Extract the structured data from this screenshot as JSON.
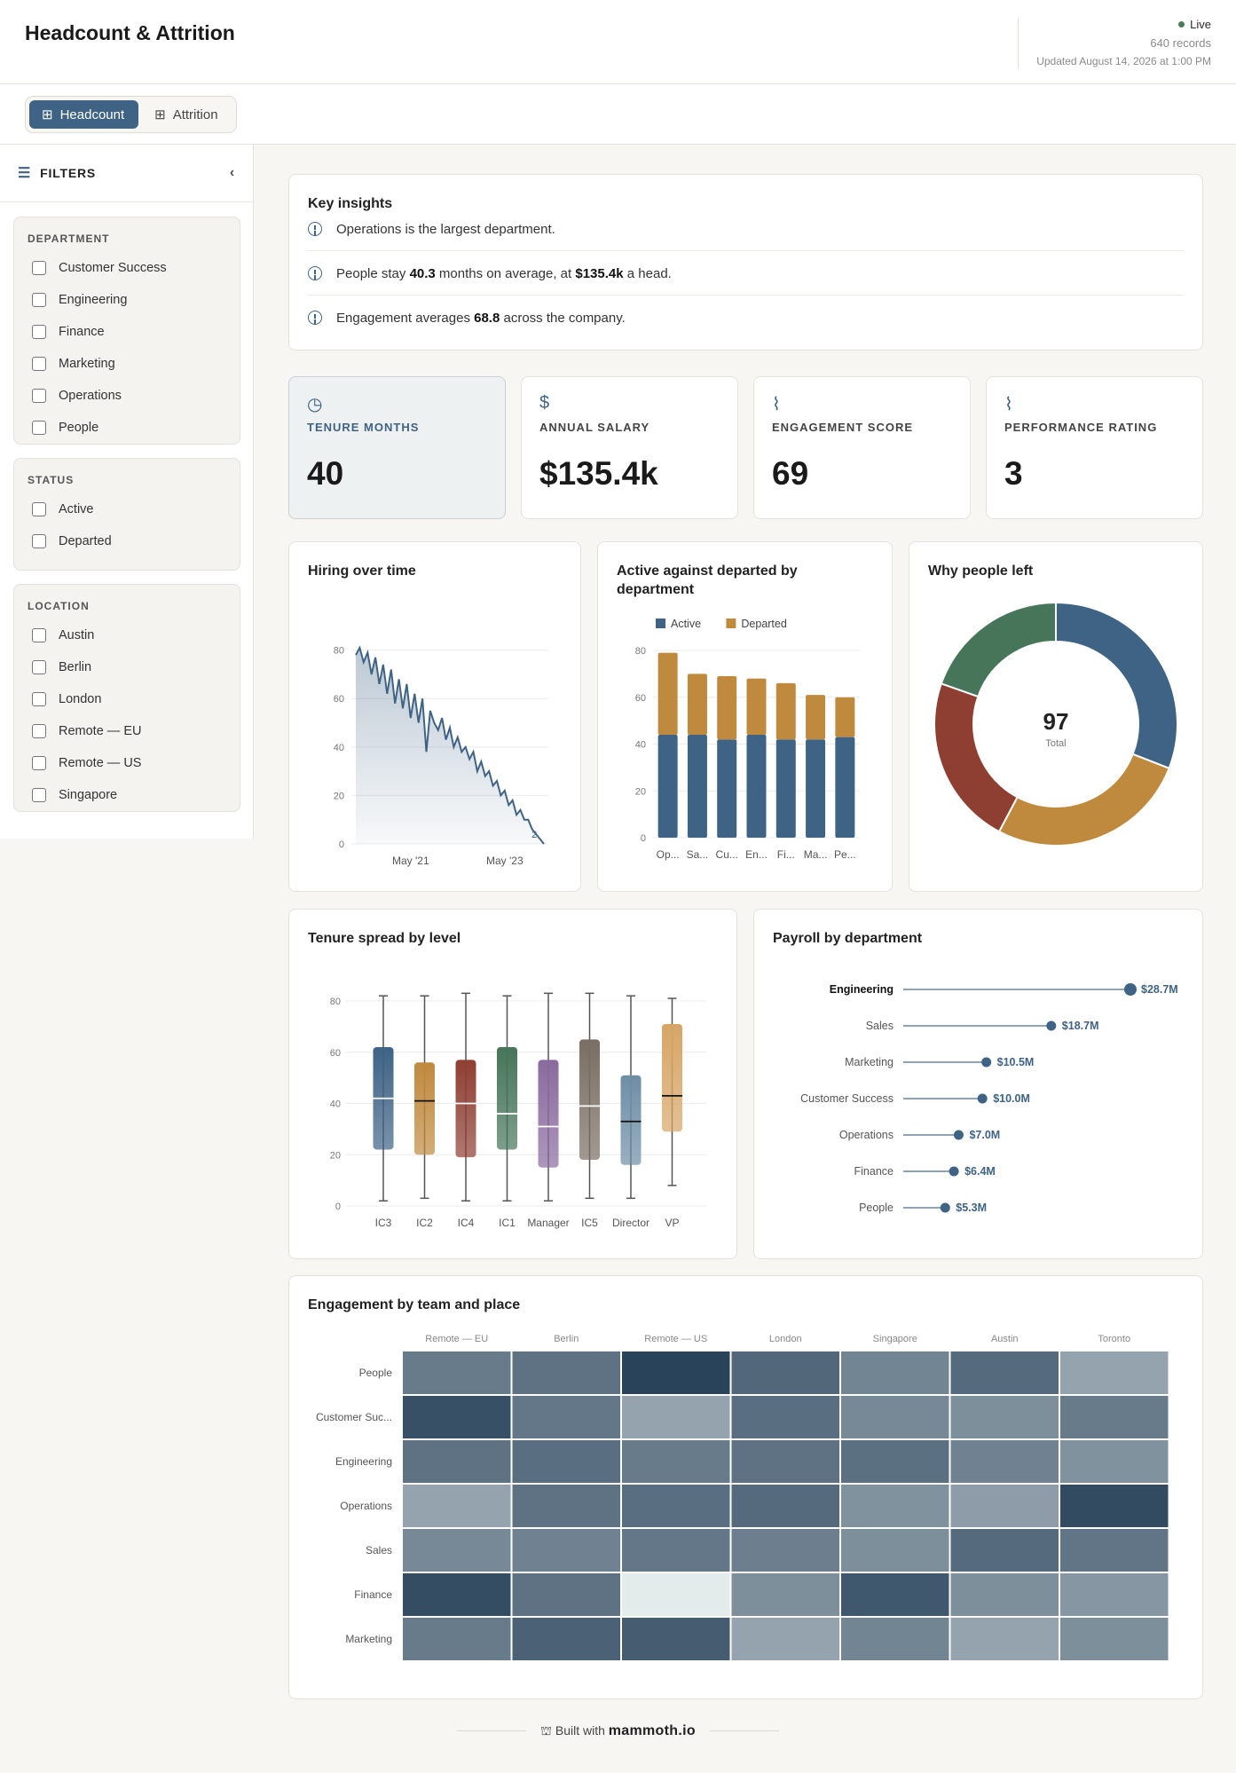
{
  "header": {
    "title": "Headcount & Attrition",
    "status": "Live",
    "records": "640 records",
    "updated": "Updated August 14, 2026 at 1:00 PM"
  },
  "tabs": [
    {
      "label": "Headcount",
      "active": true
    },
    {
      "label": "Attrition",
      "active": false
    }
  ],
  "filters": {
    "title": "FILTERS",
    "groups": [
      {
        "title": "DEPARTMENT",
        "options": [
          "Customer Success",
          "Engineering",
          "Finance",
          "Marketing",
          "Operations",
          "People"
        ]
      },
      {
        "title": "STATUS",
        "options": [
          "Active",
          "Departed"
        ]
      },
      {
        "title": "LOCATION",
        "options": [
          "Austin",
          "Berlin",
          "London",
          "Remote — EU",
          "Remote — US",
          "Singapore"
        ]
      }
    ]
  },
  "insights": {
    "title": "Key insights",
    "items": [
      {
        "parts": [
          {
            "t": "Operations is the largest department."
          }
        ]
      },
      {
        "parts": [
          {
            "t": "People stay "
          },
          {
            "t": "40.3",
            "b": true
          },
          {
            "t": " months on average, at "
          },
          {
            "t": "$135.4k",
            "b": true
          },
          {
            "t": " a head."
          }
        ]
      },
      {
        "parts": [
          {
            "t": "Engagement averages "
          },
          {
            "t": "68.8",
            "b": true
          },
          {
            "t": " across the company."
          }
        ]
      }
    ]
  },
  "kpis": [
    {
      "label": "TENURE MONTHS",
      "value": "40",
      "icon": "clock-icon",
      "glyph": "◷",
      "highlight": true
    },
    {
      "label": "ANNUAL SALARY",
      "value": "$135.4k",
      "icon": "dollar-icon",
      "glyph": "$",
      "highlight": false
    },
    {
      "label": "ENGAGEMENT SCORE",
      "value": "69",
      "icon": "activity-icon",
      "glyph": "⌇",
      "highlight": false
    },
    {
      "label": "PERFORMANCE RATING",
      "value": "3",
      "icon": "activity-icon",
      "glyph": "⌇",
      "highlight": false
    }
  ],
  "chart_data": [
    {
      "type": "area",
      "title": "Hiring over time",
      "y_ticks": [
        0,
        20,
        40,
        60,
        80
      ],
      "ylim": [
        0,
        85
      ],
      "x_tick_labels": [
        "May '21",
        "May '23"
      ],
      "x_tick_index": [
        14,
        38
      ],
      "end_label": "2",
      "values": [
        78,
        81,
        75,
        79,
        70,
        77,
        66,
        74,
        62,
        72,
        58,
        68,
        56,
        66,
        52,
        62,
        50,
        60,
        38,
        55,
        50,
        47,
        52,
        43,
        48,
        40,
        44,
        38,
        40,
        35,
        38,
        30,
        34,
        28,
        30,
        24,
        26,
        20,
        22,
        16,
        18,
        12,
        14,
        10,
        10,
        6,
        4,
        2,
        0
      ]
    },
    {
      "type": "bar",
      "stacked": true,
      "title": "Active against departed by department",
      "categories": [
        "Op...",
        "Sa...",
        "Cu...",
        "En...",
        "Fi...",
        "Ma...",
        "Pe..."
      ],
      "series": [
        {
          "name": "Active",
          "color": "#3f6385",
          "values": [
            44,
            44,
            42,
            44,
            42,
            42,
            43
          ]
        },
        {
          "name": "Departed",
          "color": "#c08a3e",
          "values": [
            35,
            26,
            27,
            24,
            24,
            19,
            17
          ]
        }
      ],
      "y_ticks": [
        0,
        20,
        40,
        60,
        80
      ],
      "ylim": [
        0,
        80
      ],
      "legend": "top"
    },
    {
      "type": "pie",
      "title": "Why people left",
      "center_value": "97",
      "center_label": "Total",
      "slices": [
        {
          "value": 30,
          "color": "#3f6385"
        },
        {
          "value": 26,
          "color": "#c08a3e"
        },
        {
          "value": 22,
          "color": "#8e3f32"
        },
        {
          "value": 19,
          "color": "#467559"
        }
      ]
    },
    {
      "type": "box",
      "title": "Tenure spread by level",
      "categories": [
        "IC3",
        "IC2",
        "IC4",
        "IC1",
        "Manager",
        "IC5",
        "Director",
        "VP"
      ],
      "y_ticks": [
        0,
        20,
        40,
        60,
        80
      ],
      "ylim": [
        0,
        85
      ],
      "boxes": [
        {
          "min": 2,
          "q1": 22,
          "median": 42,
          "q3": 62,
          "max": 82,
          "color": "#3f6385"
        },
        {
          "min": 3,
          "q1": 20,
          "median": 41,
          "q3": 56,
          "max": 82,
          "color": "#c08a3e"
        },
        {
          "min": 2,
          "q1": 19,
          "median": 40,
          "q3": 57,
          "max": 83,
          "color": "#8e3f32"
        },
        {
          "min": 2,
          "q1": 22,
          "median": 36,
          "q3": 62,
          "max": 82,
          "color": "#467559"
        },
        {
          "min": 2,
          "q1": 15,
          "median": 31,
          "q3": 57,
          "max": 83,
          "color": "#8a6a9e"
        },
        {
          "min": 3,
          "q1": 18,
          "median": 39,
          "q3": 65,
          "max": 83,
          "color": "#7a6e63"
        },
        {
          "min": 3,
          "q1": 16,
          "median": 33,
          "q3": 51,
          "max": 82,
          "color": "#6e8ea6"
        },
        {
          "min": 8,
          "q1": 29,
          "median": 43,
          "q3": 71,
          "max": 81,
          "color": "#d7a566"
        }
      ]
    },
    {
      "type": "lollipop",
      "title": "Payroll by department",
      "categories": [
        "Engineering",
        "Sales",
        "Marketing",
        "Customer Success",
        "Operations",
        "Finance",
        "People"
      ],
      "values": [
        28.7,
        18.7,
        10.5,
        10.0,
        7.0,
        6.4,
        5.3
      ],
      "labels": [
        "$28.7M",
        "$18.7M",
        "$10.5M",
        "$10.0M",
        "$7.0M",
        "$6.4M",
        "$5.3M"
      ]
    },
    {
      "type": "heatmap",
      "title": "Engagement by team and place",
      "columns": [
        "Remote — EU",
        "Berlin",
        "Remote — US",
        "London",
        "Singapore",
        "Austin",
        "Toronto"
      ],
      "rows": [
        "People",
        "Customer Suc...",
        "Engineering",
        "Operations",
        "Sales",
        "Finance",
        "Marketing"
      ],
      "values": [
        [
          0.55,
          0.62,
          0.98,
          0.7,
          0.48,
          0.68,
          0.25
        ],
        [
          0.88,
          0.58,
          0.25,
          0.65,
          0.45,
          0.4,
          0.55
        ],
        [
          0.62,
          0.65,
          0.55,
          0.62,
          0.64,
          0.5,
          0.38
        ],
        [
          0.25,
          0.62,
          0.65,
          0.68,
          0.38,
          0.3,
          0.92
        ],
        [
          0.45,
          0.5,
          0.58,
          0.52,
          0.4,
          0.68,
          0.6
        ],
        [
          0.9,
          0.62,
          0.02,
          0.4,
          0.82,
          0.4,
          0.35
        ],
        [
          0.55,
          0.75,
          0.78,
          0.25,
          0.48,
          0.25,
          0.4
        ]
      ]
    }
  ],
  "footer": {
    "built_with": "Built with",
    "brand": "mammoth.io"
  }
}
